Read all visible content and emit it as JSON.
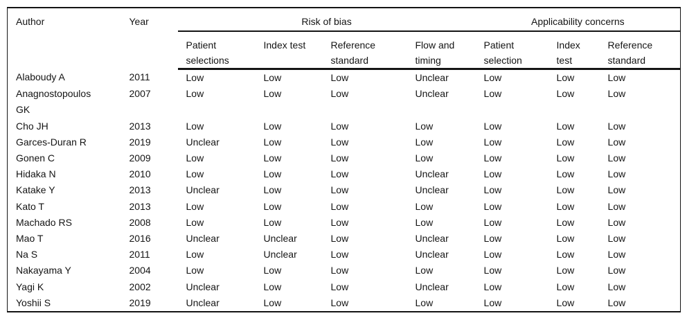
{
  "table": {
    "columns": {
      "author": "Author",
      "year": "Year"
    },
    "groups": [
      {
        "label": "Risk of bias",
        "subcolumns": [
          "Patient\nselections",
          "Index test",
          "Reference\nstandard",
          "Flow and\ntiming"
        ]
      },
      {
        "label": "Applicability concerns",
        "subcolumns": [
          "Patient\nselection",
          "Index\ntest",
          "Reference\nstandard"
        ]
      }
    ],
    "rows": [
      {
        "author": "Alaboudy A",
        "year": "2011",
        "risk_of_bias": [
          "Low",
          "Low",
          "Low",
          "Unclear"
        ],
        "applicability": [
          "Low",
          "Low",
          "Low"
        ]
      },
      {
        "author": "Anagnostopoulos\nGK",
        "year": "2007",
        "risk_of_bias": [
          "Low",
          "Low",
          "Low",
          "Unclear"
        ],
        "applicability": [
          "Low",
          "Low",
          "Low"
        ]
      },
      {
        "author": "Cho JH",
        "year": "2013",
        "risk_of_bias": [
          "Low",
          "Low",
          "Low",
          "Low"
        ],
        "applicability": [
          "Low",
          "Low",
          "Low"
        ]
      },
      {
        "author": "Garces-Duran R",
        "year": "2019",
        "risk_of_bias": [
          "Unclear",
          "Low",
          "Low",
          "Low"
        ],
        "applicability": [
          "Low",
          "Low",
          "Low"
        ]
      },
      {
        "author": "Gonen C",
        "year": "2009",
        "risk_of_bias": [
          "Low",
          "Low",
          "Low",
          "Low"
        ],
        "applicability": [
          "Low",
          "Low",
          "Low"
        ]
      },
      {
        "author": "Hidaka N",
        "year": "2010",
        "risk_of_bias": [
          "Low",
          "Low",
          "Low",
          "Unclear"
        ],
        "applicability": [
          "Low",
          "Low",
          "Low"
        ]
      },
      {
        "author": "Katake Y",
        "year": "2013",
        "risk_of_bias": [
          "Unclear",
          "Low",
          "Low",
          "Unclear"
        ],
        "applicability": [
          "Low",
          "Low",
          "Low"
        ]
      },
      {
        "author": "Kato T",
        "year": "2013",
        "risk_of_bias": [
          "Low",
          "Low",
          "Low",
          "Low"
        ],
        "applicability": [
          "Low",
          "Low",
          "Low"
        ]
      },
      {
        "author": "Machado RS",
        "year": "2008",
        "risk_of_bias": [
          "Low",
          "Low",
          "Low",
          "Low"
        ],
        "applicability": [
          "Low",
          "Low",
          "Low"
        ]
      },
      {
        "author": "Mao T",
        "year": "2016",
        "risk_of_bias": [
          "Unclear",
          "Unclear",
          "Low",
          "Unclear"
        ],
        "applicability": [
          "Low",
          "Low",
          "Low"
        ]
      },
      {
        "author": "Na S",
        "year": "2011",
        "risk_of_bias": [
          "Low",
          "Unclear",
          "Low",
          "Unclear"
        ],
        "applicability": [
          "Low",
          "Low",
          "Low"
        ]
      },
      {
        "author": "Nakayama Y",
        "year": "2004",
        "risk_of_bias": [
          "Low",
          "Low",
          "Low",
          "Low"
        ],
        "applicability": [
          "Low",
          "Low",
          "Low"
        ]
      },
      {
        "author": "Yagi K",
        "year": "2002",
        "risk_of_bias": [
          "Unclear",
          "Low",
          "Low",
          "Unclear"
        ],
        "applicability": [
          "Low",
          "Low",
          "Low"
        ]
      },
      {
        "author": "Yoshii S",
        "year": "2019",
        "risk_of_bias": [
          "Unclear",
          "Low",
          "Low",
          "Low"
        ],
        "applicability": [
          "Low",
          "Low",
          "Low"
        ]
      }
    ]
  }
}
